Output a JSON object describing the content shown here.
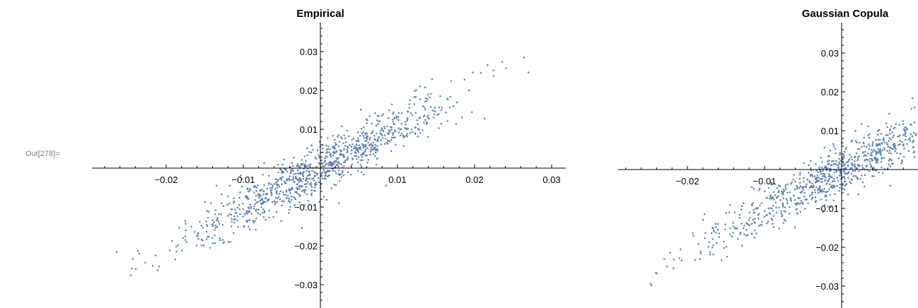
{
  "cell_label": "Out[278]=",
  "chart_data": [
    {
      "type": "scatter",
      "title": "Empirical",
      "xlim": [
        -0.03,
        0.03
      ],
      "ylim": [
        -0.035,
        0.038
      ],
      "x_ticks": [
        "−0.02",
        "−0.01",
        "0.01",
        "0.02",
        "0.03"
      ],
      "y_ticks": [
        "0.03",
        "0.02",
        "0.01",
        "−0.01",
        "−0.02",
        "−0.03"
      ],
      "point_color": "#5e81b5",
      "grid": false,
      "n_points": 1000,
      "approx_slope": 1.05,
      "approx_noise_sd": 0.0032,
      "x_spread_sd": 0.0085
    },
    {
      "type": "scatter",
      "title": "Gaussian Copula",
      "xlim": [
        -0.029,
        0.009
      ],
      "ylim": [
        -0.035,
        0.038
      ],
      "x_ticks": [
        "−0.02",
        "−0.01"
      ],
      "y_ticks": [
        "0.03",
        "0.02",
        "0.01",
        "−0.01",
        "−0.02",
        "−0.03"
      ],
      "point_color": "#5e81b5",
      "grid": false,
      "n_points": 900,
      "approx_slope": 1.05,
      "approx_noise_sd": 0.0032,
      "x_spread_sd": 0.0085
    }
  ]
}
